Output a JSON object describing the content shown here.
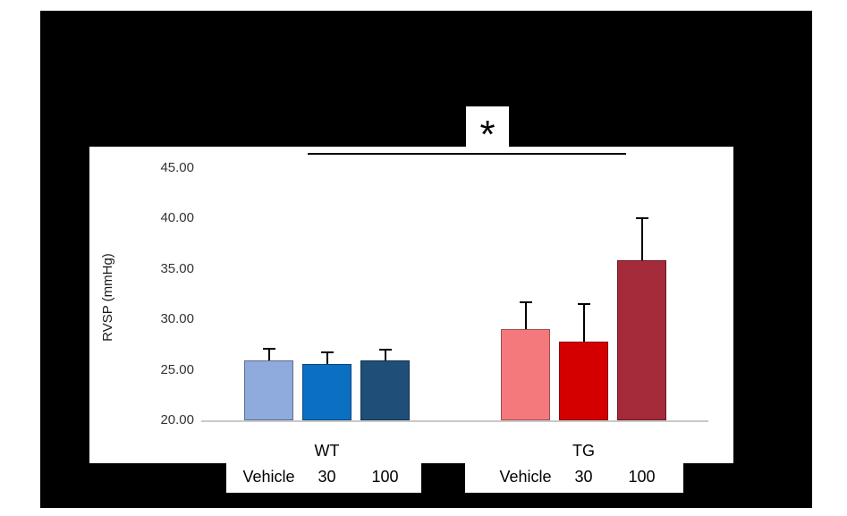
{
  "chart_data": {
    "type": "bar",
    "title": "",
    "xlabel": "",
    "ylabel": "RVSP (mmHg)",
    "ylim": [
      20,
      45
    ],
    "ytick_labels": [
      "45.00",
      "40.00",
      "35.00",
      "30.00",
      "25.00",
      "20.00"
    ],
    "grid": false,
    "legend": "none",
    "groups": [
      {
        "label": "WT",
        "bars": [
          {
            "label": "Vehicle",
            "value": 25.9,
            "error_top": 27.1,
            "color": "#8FAADC"
          },
          {
            "label": "30",
            "value": 25.6,
            "error_top": 26.7,
            "color": "#0B6FC2"
          },
          {
            "label": "100",
            "value": 25.9,
            "error_top": 27.0,
            "color": "#1F4E79"
          }
        ]
      },
      {
        "label": "TG",
        "bars": [
          {
            "label": "Vehicle",
            "value": 29.0,
            "error_top": 31.7,
            "color": "#F4797C"
          },
          {
            "label": "30",
            "value": 27.8,
            "error_top": 31.5,
            "color": "#D40000"
          },
          {
            "label": "100",
            "value": 35.9,
            "error_top": 40.0,
            "color": "#A52A3A"
          }
        ]
      }
    ],
    "significance": {
      "symbol": "*",
      "comparison": "line spanning from WT group to TG group"
    }
  },
  "colors": {
    "figure_background": "#000000",
    "panel_background": "#FFFFFF",
    "baseline": "#C9C9C9",
    "error_bars": "#000000"
  }
}
